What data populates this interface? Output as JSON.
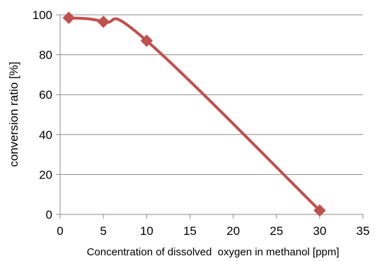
{
  "chart_data": {
    "type": "line",
    "title": "",
    "xlabel": "Concentration of dissolved  oxygen in methanol [ppm]",
    "ylabel": "conversion ratio [%]",
    "xlim": [
      0,
      35
    ],
    "ylim": [
      0,
      100
    ],
    "xticks": [
      0,
      5,
      10,
      15,
      20,
      25,
      30,
      35
    ],
    "yticks": [
      0,
      20,
      40,
      60,
      80,
      100
    ],
    "grid": "horizontal",
    "legend": "none",
    "series": [
      {
        "x": [
          1,
          5,
          10,
          30
        ],
        "y": [
          98.5,
          96.5,
          87,
          2
        ],
        "color": "#c0504d",
        "marker": "diamond",
        "smooth": true
      }
    ]
  }
}
